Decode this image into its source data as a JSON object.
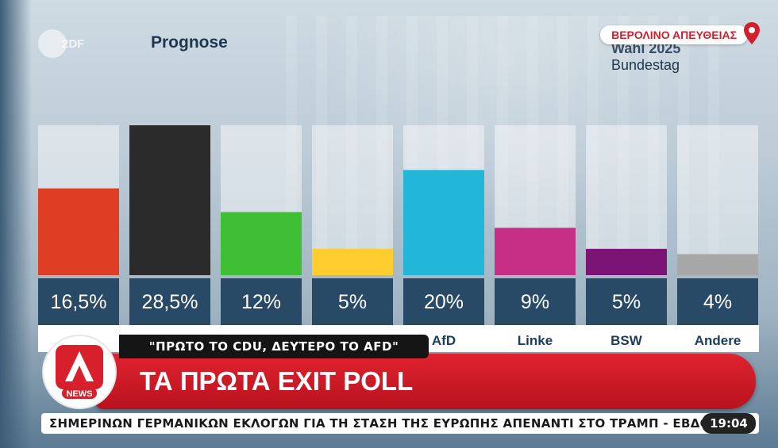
{
  "broadcast": {
    "channel_logo": "2DF",
    "location_tag": "ΒΕΡΟΛΙΝΟ ΑΠΕΥΘΕΙΑΣ",
    "quote": "\"ΠΡΩΤΟ ΤΟ CDU, ΔΕΥΤΕΡΟ ΤΟ AFD\"",
    "headline": "ΤΑ ΠΡΩΤΑ EXIT POLL",
    "network_logo": "NEWS",
    "ticker": "ΣΗΜΕΡΙΝΩΝ ΓΕΡΜΑΝΙΚΩΝ ΕΚΛΟΓΩΝ ΓΙΑ ΤΗ ΣΤΑΣΗ ΤΗΣ ΕΥΡΩΠΗΣ ΑΠΕΝΑΝΤΙ ΣΤΟ ΤΡΑΜΠ  -  ΕΒΔΟΜ",
    "time": "19:04",
    "icons": {
      "location": "map-pin-icon"
    },
    "colors": {
      "alpha_red": "#d7202c",
      "tag_red": "#d21f2c"
    }
  },
  "chart_data": {
    "type": "bar",
    "title": "Prognose",
    "subtitle_line1": "Wahl 2025",
    "subtitle_line2": "Bundestag",
    "categories": [
      "",
      "",
      "",
      "",
      "AfD",
      "Linke",
      "BSW",
      "Andere"
    ],
    "values": [
      16.5,
      28.5,
      12,
      5,
      20,
      9,
      5,
      4
    ],
    "value_labels": [
      "16,5%",
      "28,5%",
      "12%",
      "5%",
      "20%",
      "9%",
      "5%",
      "4%"
    ],
    "colors": [
      "#dd3e24",
      "#2b2b2b",
      "#3fbf33",
      "#ffcd2e",
      "#22b7d9",
      "#c72f86",
      "#7c1476",
      "#a7a7a7"
    ],
    "ylim": [
      0,
      28.5
    ],
    "grid": false,
    "legend": "none"
  }
}
